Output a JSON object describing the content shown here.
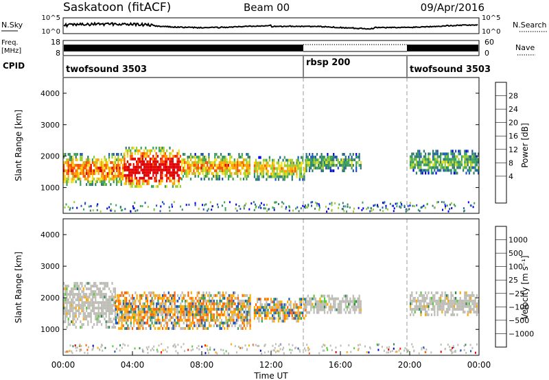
{
  "header": {
    "title": "Saskatoon (fitACF)",
    "beam": "Beam 00",
    "date": "09/Apr/2016"
  },
  "noise_panel": {
    "left_label": "N.Sky",
    "right_label": "N.Search",
    "left_ticks": [
      "10^5",
      "10^0"
    ],
    "right_ticks": [
      "10^5",
      "10^0"
    ]
  },
  "freq_panel": {
    "left_label_1": "Freq.",
    "left_label_2": "[MHz]",
    "left_ticks": [
      "18",
      "8"
    ],
    "right_ticks": [
      "60",
      "0"
    ],
    "right_label": "Nave"
  },
  "cpid": {
    "label": "CPID",
    "segments": [
      {
        "name": "twofsound 3503",
        "start_hour": 0,
        "end_hour": 14
      },
      {
        "name": "rbsp 200",
        "start_hour": 14,
        "end_hour": 20
      },
      {
        "name": "twofsound 3503",
        "start_hour": 20,
        "end_hour": 24
      }
    ]
  },
  "chart_data": [
    {
      "type": "heatmap",
      "name": "power",
      "ylabel": "Slant Range [km]",
      "xlim": [
        0,
        24
      ],
      "ylim": [
        180,
        4500
      ],
      "yticks": [
        "1000",
        "2000",
        "3000",
        "4000"
      ],
      "colorbar": {
        "label": "Power [dB]",
        "ticks": [
          "28",
          "24",
          "20",
          "16",
          "12",
          "8",
          "4"
        ],
        "colors": [
          "#0000ee",
          "#2255bb",
          "#2e7d6e",
          "#3aa35a",
          "#9acd32",
          "#f0e020",
          "#ffa500",
          "#ff5000",
          "#e00000"
        ]
      },
      "echo_regions": [
        {
          "t0": 0.0,
          "t1": 3.5,
          "r0": 1100,
          "r1": 2100,
          "level": 0.55
        },
        {
          "t0": 3.5,
          "t1": 6.8,
          "r0": 1000,
          "r1": 2300,
          "level": 0.75
        },
        {
          "t0": 6.8,
          "t1": 10.8,
          "r0": 1300,
          "r1": 2100,
          "level": 0.5
        },
        {
          "t0": 11.0,
          "t1": 14.0,
          "r0": 1300,
          "r1": 2000,
          "level": 0.45
        },
        {
          "t0": 14.0,
          "t1": 17.2,
          "r0": 1550,
          "r1": 2100,
          "level": 0.3
        },
        {
          "t0": 20.0,
          "t1": 24.0,
          "r0": 1500,
          "r1": 2200,
          "level": 0.3
        }
      ]
    },
    {
      "type": "heatmap",
      "name": "velocity",
      "ylabel": "Slant Range [km]",
      "xlabel": "Time UT",
      "xlim": [
        0,
        24
      ],
      "ylim": [
        180,
        4500
      ],
      "yticks": [
        "1000",
        "2000",
        "3000",
        "4000"
      ],
      "xticks": [
        "00:00",
        "04:00",
        "08:00",
        "12:00",
        "16:00",
        "20:00",
        "00:00"
      ],
      "colorbar": {
        "label": "Velocity [m s⁻¹]",
        "ticks": [
          "1000",
          "500",
          "100",
          "25",
          "−25",
          "−100",
          "−500",
          "−1000"
        ],
        "colors": [
          "#0000cc",
          "#2255bb",
          "#2e8b57",
          "#55cc33",
          "#bbbbbb",
          "#ffaa00",
          "#ff6600",
          "#ff2200",
          "#dd0000"
        ]
      },
      "echo_regions": [
        {
          "t0": 0.0,
          "t1": 3.0,
          "r0": 1100,
          "r1": 2500,
          "level": "ground"
        },
        {
          "t0": 3.0,
          "t1": 10.8,
          "r0": 1000,
          "r1": 2200,
          "level": "negative"
        },
        {
          "t0": 11.0,
          "t1": 14.0,
          "r0": 1300,
          "r1": 2000,
          "level": "negative"
        },
        {
          "t0": 14.0,
          "t1": 17.2,
          "r0": 1550,
          "r1": 2100,
          "level": "ground"
        },
        {
          "t0": 20.0,
          "t1": 24.0,
          "r0": 1500,
          "r1": 2200,
          "level": "ground"
        }
      ]
    }
  ]
}
